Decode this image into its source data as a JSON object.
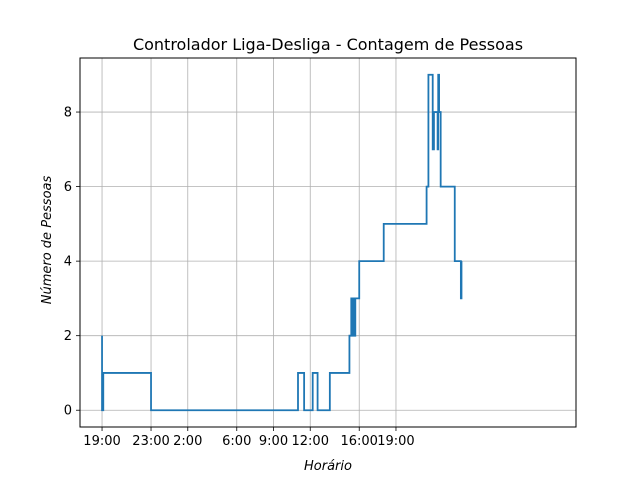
{
  "chart_data": {
    "type": "line",
    "step": true,
    "title": "Controlador Liga-Desliga - Contagem de Pessoas",
    "xlabel": "Horário",
    "ylabel": "Número de Pessoas",
    "grid": true,
    "xlim": [
      -1.8,
      38.7
    ],
    "ylim": [
      -0.45,
      9.45
    ],
    "x_ticks": [
      {
        "x": 0,
        "label": "19:00"
      },
      {
        "x": 4,
        "label": "23:00"
      },
      {
        "x": 7,
        "label": "2:00"
      },
      {
        "x": 11,
        "label": "6:00"
      },
      {
        "x": 14,
        "label": "9:00"
      },
      {
        "x": 17,
        "label": "12:00"
      },
      {
        "x": 21,
        "label": "16:00"
      },
      {
        "x": 24,
        "label": "19:00"
      }
    ],
    "y_ticks": [
      0,
      2,
      4,
      6,
      8
    ],
    "line_color": "#1f77b4",
    "series": [
      {
        "points": [
          [
            0.0,
            2
          ],
          [
            0.0,
            0
          ],
          [
            0.1,
            0
          ],
          [
            0.1,
            1
          ],
          [
            4.0,
            1
          ],
          [
            4.0,
            0
          ],
          [
            16.0,
            0
          ],
          [
            16.0,
            1
          ],
          [
            16.5,
            1
          ],
          [
            16.5,
            0
          ],
          [
            17.2,
            0
          ],
          [
            17.2,
            1
          ],
          [
            17.6,
            1
          ],
          [
            17.6,
            0
          ],
          [
            18.6,
            0
          ],
          [
            18.6,
            1
          ],
          [
            20.2,
            1
          ],
          [
            20.2,
            2
          ],
          [
            20.35,
            2
          ],
          [
            20.35,
            3
          ],
          [
            20.42,
            3
          ],
          [
            20.42,
            2
          ],
          [
            20.5,
            2
          ],
          [
            20.5,
            3
          ],
          [
            20.58,
            3
          ],
          [
            20.58,
            2
          ],
          [
            20.68,
            2
          ],
          [
            20.68,
            3
          ],
          [
            21.0,
            3
          ],
          [
            21.0,
            4
          ],
          [
            23.0,
            4
          ],
          [
            23.0,
            5
          ],
          [
            26.5,
            5
          ],
          [
            26.5,
            6
          ],
          [
            26.65,
            6
          ],
          [
            26.65,
            9
          ],
          [
            27.0,
            9
          ],
          [
            27.0,
            7
          ],
          [
            27.1,
            7
          ],
          [
            27.1,
            8
          ],
          [
            27.4,
            8
          ],
          [
            27.4,
            7
          ],
          [
            27.45,
            7
          ],
          [
            27.45,
            9
          ],
          [
            27.52,
            9
          ],
          [
            27.52,
            8
          ],
          [
            27.65,
            8
          ],
          [
            27.65,
            6
          ],
          [
            28.8,
            6
          ],
          [
            28.8,
            4
          ],
          [
            29.3,
            4
          ],
          [
            29.3,
            3
          ],
          [
            29.35,
            3
          ],
          [
            29.35,
            4
          ]
        ]
      }
    ]
  }
}
